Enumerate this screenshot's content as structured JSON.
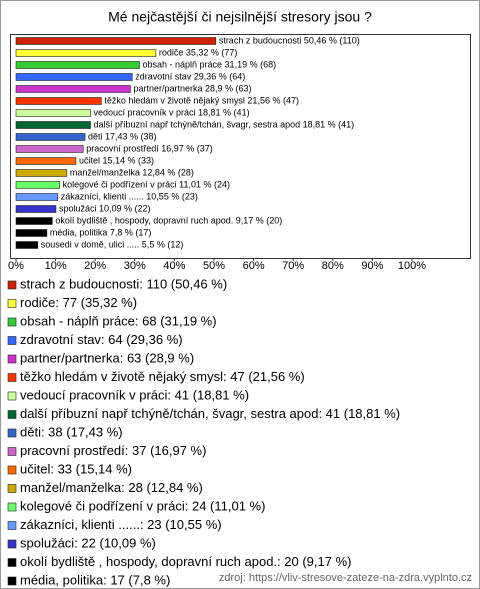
{
  "chart_data": {
    "type": "bar",
    "orientation": "horizontal",
    "title": "Mé nejčastější či nejsilnější stresory jsou ?",
    "values": [
      50.46,
      35.32,
      31.19,
      29.36,
      28.9,
      21.56,
      18.81,
      18.81,
      17.43,
      16.97,
      15.14,
      12.84,
      11.01,
      10.55,
      10.09,
      9.17,
      7.8,
      5.5
    ],
    "value_labels": [
      "strach z budoucnosti 50,46 % (110)",
      "rodiče 35,32 % (77)",
      "obsah - náplň práce 31,19 % (68)",
      "zdravotní stav 29,36 % (64)",
      "partner/partnerka 28,9 % (63)",
      "těžko hledám v životě nějaký smysl 21,56 % (47)",
      "vedoucí pracovník v práci 18,81 % (41)",
      "další příbuzní např tchýně/tchán, švagr, sestra apod 18,81 % (41)",
      "děti 17,43 % (38)",
      "pracovní prostředí 16,97 % (37)",
      "učitel 15,14 % (33)",
      "manžel/manželka 12,84 % (28)",
      "kolegové či podřízení v práci 11,01 % (24)",
      "zákazníci, klienti ...... 10,55 % (23)",
      "spolužáci 10,09 % (22)",
      "okolí bydliště , hospody, dopravní ruch apod. 9,17 % (20)",
      "média, politika 7,8 % (17)",
      "sousedi v domě, ulici ..... 5,5 % (12)"
    ],
    "legend": [
      "strach z budoucnosti: 110 (50,46 %)",
      "rodiče: 77 (35,32 %)",
      "obsah - náplň práce: 68 (31,19 %)",
      "zdravotní stav: 64 (29,36 %)",
      "partner/partnerka: 63 (28,9 %)",
      "těžko hledám v životě nějaký smysl: 47 (21,56 %)",
      "vedoucí pracovník v práci: 41 (18,81 %)",
      "další příbuzní např tchýně/tchán, švagr, sestra apod: 41 (18,81 %)",
      "děti: 38 (17,43 %)",
      "pracovní prostředí: 37 (16,97 %)",
      "učitel: 33 (15,14 %)",
      "manžel/manželka: 28 (12,84 %)",
      "kolegové či podřízení v práci: 24 (11,01 %)",
      "zákazníci, klienti ......: 23 (10,55 %)",
      "spolužáci: 22 (10,09 %)",
      "okolí bydliště , hospody, dopravní ruch apod.: 20 (9,17 %)",
      "média, politika: 17 (7,8 %)",
      "sousedi v domě, ulici .....: 12 (5,5 %)"
    ],
    "colors": [
      "#cc2200",
      "#ffff33",
      "#33cc33",
      "#3366ff",
      "#cc33cc",
      "#ff3300",
      "#ccff99",
      "#006633",
      "#3366cc",
      "#cc66cc",
      "#ff6600",
      "#ccaa00",
      "#66ff66",
      "#6699ff",
      "#3333cc",
      "#000000",
      "#000000",
      "#000000"
    ],
    "xlim": [
      0,
      100
    ],
    "xticks": [
      {
        "value": 0,
        "label": "0%"
      },
      {
        "value": 10,
        "label": "10%"
      },
      {
        "value": 20,
        "label": "20%"
      },
      {
        "value": 30,
        "label": "30%"
      },
      {
        "value": 40,
        "label": "40%"
      },
      {
        "value": 50,
        "label": "50%"
      },
      {
        "value": 60,
        "label": "60%"
      },
      {
        "value": 70,
        "label": "70%"
      },
      {
        "value": 80,
        "label": "80%"
      },
      {
        "value": 90,
        "label": "90%"
      },
      {
        "value": 100,
        "label": "100%"
      }
    ],
    "source": "zdroj:  https://vliv-stresove-zateze-na-zdra.vyplnto.cz"
  }
}
